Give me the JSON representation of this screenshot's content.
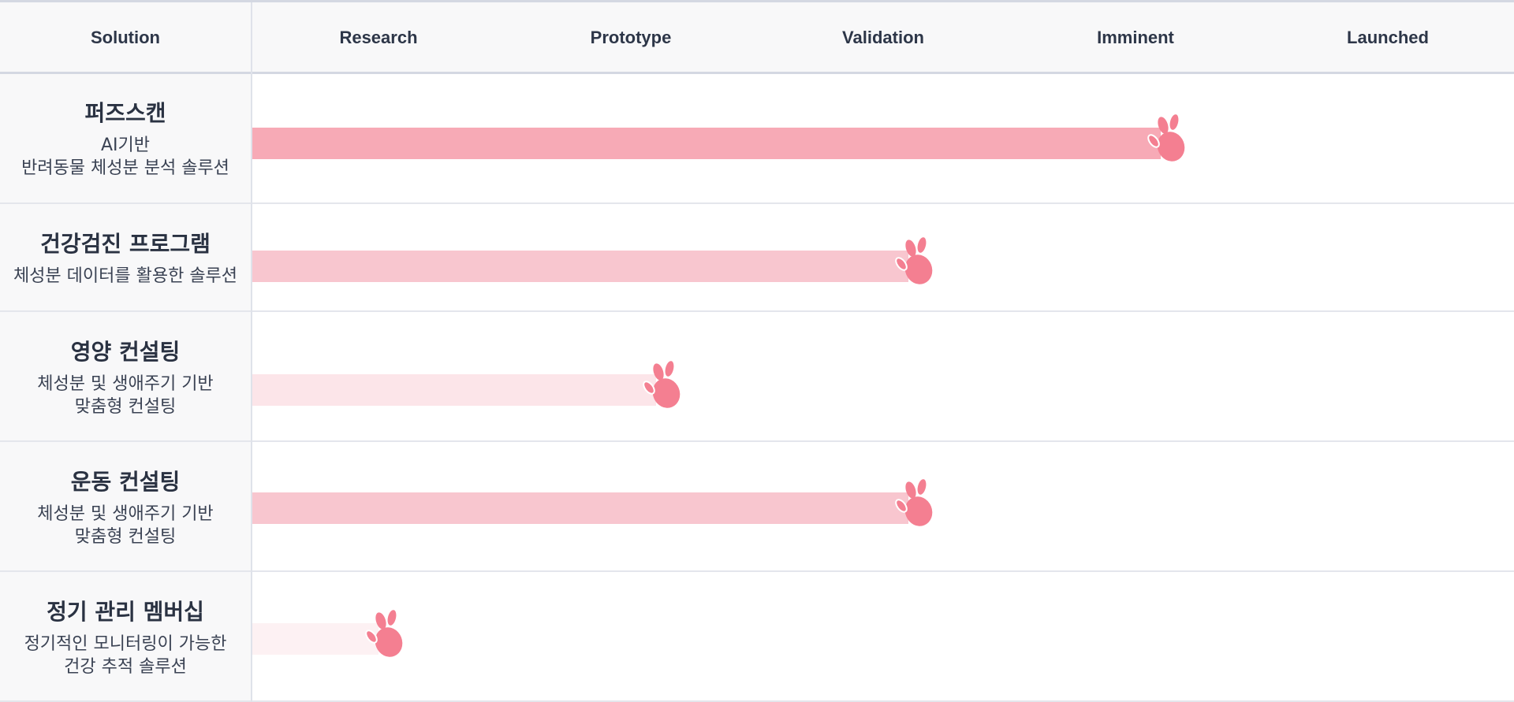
{
  "header": {
    "solution_label": "Solution"
  },
  "chart_data": {
    "type": "bar",
    "orientation": "horizontal",
    "stages": [
      "Research",
      "Prototype",
      "Validation",
      "Imminent",
      "Launched"
    ],
    "categories": [
      "퍼즈스캔",
      "건강검진 프로그램",
      "영양 컨설팅",
      "운동 컨설팅",
      "정기 관리 멤버십"
    ],
    "values": [
      3.6,
      2.6,
      1.6,
      2.6,
      0.5
    ],
    "value_unit": "stages",
    "xlim": [
      0,
      5
    ],
    "grid": true
  },
  "rows": [
    {
      "title": "퍼즈스캔",
      "desc": "AI기반\n반려동물 체성분 분석 솔루션",
      "stage": "Imminent"
    },
    {
      "title": "건강검진 프로그램",
      "desc": "체성분 데이터를 활용한 솔루션",
      "stage": "Validation"
    },
    {
      "title": "영양 컨설팅",
      "desc": "체성분 및 생애주기 기반\n맞춤형 컨설팅",
      "stage": "Prototype"
    },
    {
      "title": "운동 컨설팅",
      "desc": "체성분 및 생애주기 기반\n맞춤형 컨설팅",
      "stage": "Validation"
    },
    {
      "title": "정기 관리 멤버십",
      "desc": "정기적인 모니터링이 가능한\n건강 추적 솔루션",
      "stage": "Research"
    }
  ],
  "colors": {
    "bar_colors": [
      "#f7aab6",
      "#f8c6cf",
      "#fce5e9",
      "#f8c6cf",
      "#fdf1f3"
    ],
    "paw_color": "#f47f91",
    "header_bg": "#f8f8f9",
    "grid_line": "#e4e6ec",
    "text": "#2d3648"
  },
  "icons": {
    "marker": "paw-icon"
  }
}
